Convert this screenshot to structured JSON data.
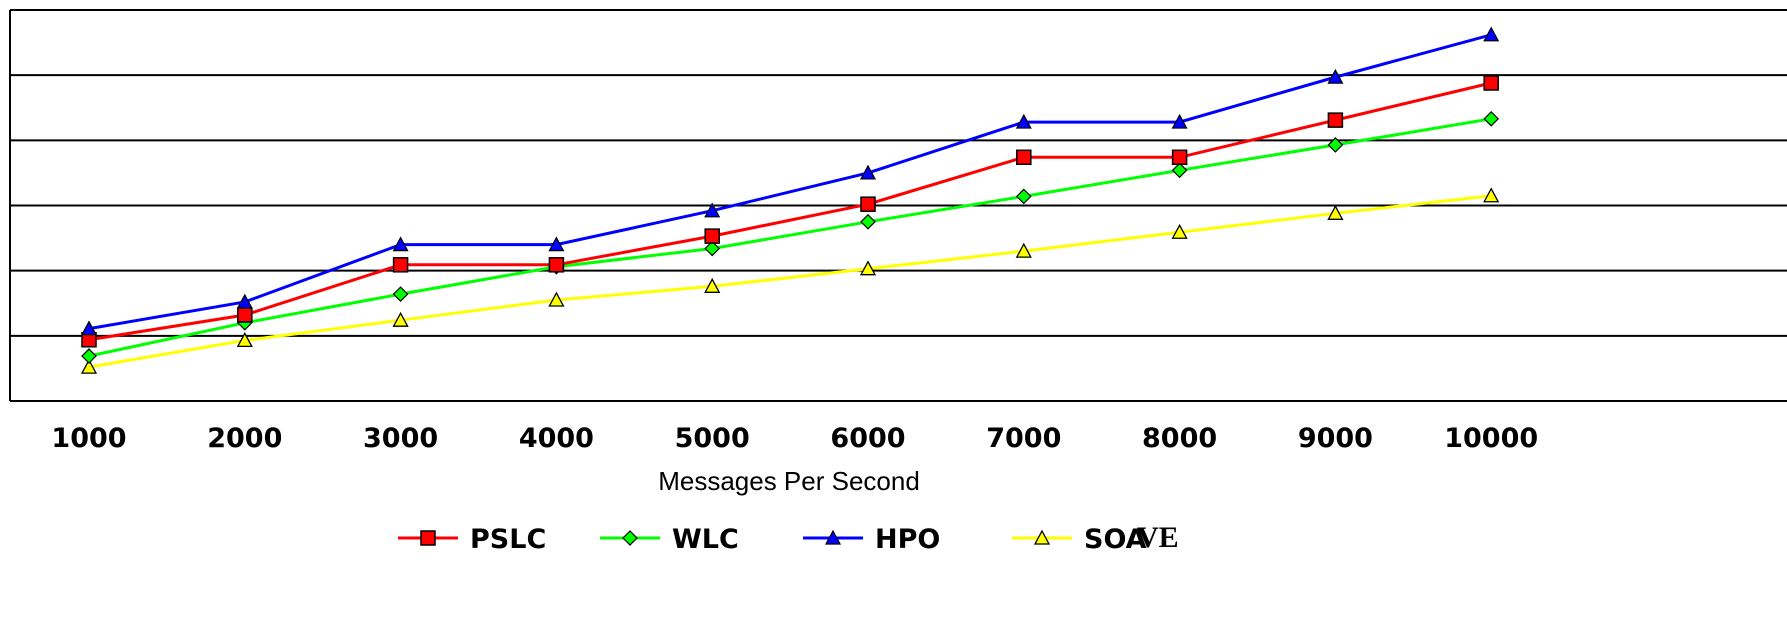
{
  "chart_data": {
    "type": "line",
    "title": "",
    "xlabel": "Messages Per Second",
    "ylabel": "",
    "categories": [
      "1000",
      "2000",
      "3000",
      "4000",
      "5000",
      "6000",
      "7000",
      "8000",
      "9000",
      "10000"
    ],
    "ylim": [
      0,
      6
    ],
    "grid": true,
    "legend_position": "bottom",
    "series": [
      {
        "name": "PSLC",
        "color": "#ff0000",
        "marker": "square",
        "values": [
          0.94,
          1.32,
          2.09,
          2.09,
          2.53,
          3.02,
          3.74,
          3.74,
          4.31,
          4.88
        ]
      },
      {
        "name": "WLC",
        "color": "#00ff00",
        "marker": "diamond",
        "values": [
          0.69,
          1.2,
          1.64,
          2.06,
          2.34,
          2.75,
          3.14,
          3.54,
          3.93,
          4.33
        ]
      },
      {
        "name": "HPO",
        "color": "#0000ff",
        "marker": "triangle",
        "values": [
          1.11,
          1.52,
          2.4,
          2.4,
          2.92,
          3.5,
          4.28,
          4.28,
          4.97,
          5.62
        ]
      },
      {
        "name": "SOA",
        "color": "#ffff00",
        "marker": "open-triangle",
        "values": [
          0.52,
          0.93,
          1.24,
          1.55,
          1.76,
          2.03,
          2.3,
          2.59,
          2.88,
          3.15
        ]
      }
    ],
    "annotation": "VE"
  }
}
